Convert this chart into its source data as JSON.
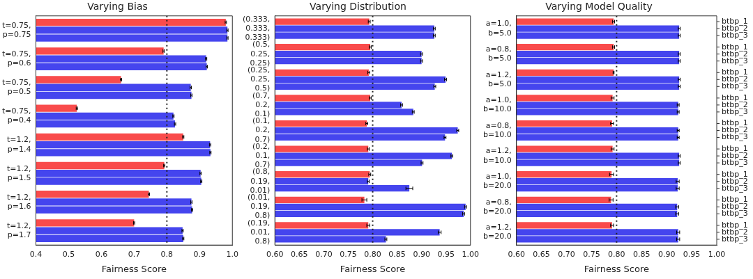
{
  "chart_data": [
    {
      "type": "bar",
      "orientation": "horizontal",
      "title": "Varying Bias",
      "xlabel": "Fairness Score",
      "legend": false,
      "grid": false,
      "categories": [
        "t=0.75,\np=0.75",
        "t=0.75,\np=0.6",
        "t=0.75,\np=0.5",
        "t=0.75,\np=0.4",
        "t=1.2,\np=1.4",
        "t=1.2,\np=1.5",
        "t=1.2,\np=1.6",
        "t=1.2,\np=1.7"
      ],
      "series": [
        {
          "color": "#f94b4b",
          "values": [
            0.98,
            0.79,
            0.66,
            0.525,
            0.85,
            0.792,
            0.745,
            0.7
          ],
          "errors": [
            0.002,
            0.002,
            0.002,
            0.002,
            0.002,
            0.002,
            0.002,
            0.002
          ]
        },
        {
          "color": "#4545ee",
          "values": [
            0.985,
            0.92,
            0.873,
            0.82,
            0.932,
            0.903,
            0.875,
            0.848
          ],
          "errors": [
            0.002,
            0.002,
            0.002,
            0.002,
            0.002,
            0.002,
            0.002,
            0.002
          ]
        },
        {
          "color": "#4545ee",
          "values": [
            0.985,
            0.922,
            0.875,
            0.825,
            0.933,
            0.905,
            0.877,
            0.85
          ],
          "errors": [
            0.002,
            0.002,
            0.002,
            0.002,
            0.002,
            0.002,
            0.002,
            0.002
          ]
        }
      ],
      "xlim": [
        0.4,
        1.0
      ],
      "xticks": [
        0.4,
        0.5,
        0.6,
        0.7,
        0.8,
        0.9,
        {
          "value": 1.0,
          "label": "1.0"
        }
      ],
      "ref_lines": [
        {
          "axis": "x",
          "value": 0.8,
          "line_style": "dotted",
          "color": "#222222"
        }
      ]
    },
    {
      "type": "bar",
      "orientation": "horizontal",
      "title": "Varying Distribution",
      "xlabel": "Fairness Score",
      "legend": false,
      "grid": false,
      "categories": [
        "(0.333,\n0.333,\n0.333)",
        "(0.5,\n0.25,\n0.25)",
        "(0.25,\n0.25,\n0.5)",
        "(0.7,\n0.2,\n0.1)",
        "(0.1,\n0.2,\n0.7)",
        "(0.2,\n0.1,\n0.7)",
        "(0.8,\n0.19,\n0.01)",
        "(0.01,\n0.19,\n0.8)",
        "(0.19,\n0.01,\n0.8)"
      ],
      "series": [
        {
          "color": "#f94b4b",
          "values": [
            0.793,
            0.795,
            0.792,
            0.795,
            0.788,
            0.791,
            0.794,
            0.783,
            0.791
          ],
          "errors": [
            0.002,
            0.002,
            0.002,
            0.002,
            0.002,
            0.002,
            0.002,
            0.005,
            0.003
          ]
        },
        {
          "color": "#4545ee",
          "values": [
            0.926,
            0.9,
            0.949,
            0.859,
            0.974,
            0.962,
            0.791,
            0.99,
            0.937
          ],
          "errors": [
            0.002,
            0.002,
            0.002,
            0.002,
            0.002,
            0.002,
            0.002,
            0.002,
            0.003
          ]
        },
        {
          "color": "#4545ee",
          "values": [
            0.926,
            0.9,
            0.927,
            0.883,
            0.948,
            0.901,
            0.875,
            0.986,
            0.827
          ],
          "errors": [
            0.002,
            0.002,
            0.002,
            0.002,
            0.002,
            0.002,
            0.007,
            0.002,
            0.002
          ]
        }
      ],
      "xlim": [
        0.6,
        1.0
      ],
      "xticks": [
        {
          "value": 0.6,
          "label": "0.60"
        },
        {
          "value": 0.65,
          "label": "0.65"
        },
        {
          "value": 0.7,
          "label": "0.70"
        },
        {
          "value": 0.75,
          "label": "0.75"
        },
        {
          "value": 0.8,
          "label": "0.80"
        },
        {
          "value": 0.85,
          "label": "0.85"
        },
        {
          "value": 0.9,
          "label": "0.90"
        },
        {
          "value": 0.95,
          "label": "0.95"
        },
        {
          "value": 1.0,
          "label": "1.00"
        }
      ],
      "ref_lines": [
        {
          "axis": "x",
          "value": 0.8,
          "line_style": "dotted",
          "color": "#222222"
        }
      ]
    },
    {
      "type": "bar",
      "orientation": "horizontal",
      "title": "Varying Model Quality",
      "xlabel": "Fairness Score",
      "legend": false,
      "grid": false,
      "categories": [
        "a=1.0,\nb=5.0",
        "a=0.8,\nb=5.0",
        "a=1.2,\nb=5.0",
        "a=1.0,\nb=10.0",
        "a=0.8,\nb=10.0",
        "a=1.2,\nb=10.0",
        "a=1.0,\nb=20.0",
        "a=0.8,\nb=20.0",
        "a=1.2,\nb=20.0"
      ],
      "series": [
        {
          "name": "btbp_1",
          "color": "#f94b4b",
          "values": [
            0.794,
            0.794,
            0.794,
            0.792,
            0.791,
            0.792,
            0.79,
            0.789,
            0.791
          ],
          "errors": [
            0.002,
            0.002,
            0.001,
            0.003,
            0.003,
            0.003,
            0.004,
            0.004,
            0.003
          ]
        },
        {
          "name": "btbp_2",
          "color": "#4545ee",
          "values": [
            0.925,
            0.925,
            0.925,
            0.923,
            0.923,
            0.925,
            0.922,
            0.921,
            0.923
          ],
          "errors": [
            0.002,
            0.002,
            0.002,
            0.002,
            0.002,
            0.002,
            0.003,
            0.003,
            0.003
          ]
        },
        {
          "name": "btbp_3",
          "color": "#4545ee",
          "values": [
            0.925,
            0.925,
            0.925,
            0.923,
            0.923,
            0.925,
            0.922,
            0.921,
            0.923
          ],
          "errors": [
            0.002,
            0.002,
            0.002,
            0.002,
            0.002,
            0.002,
            0.003,
            0.003,
            0.003
          ]
        }
      ],
      "xlim": [
        0.6,
        1.0
      ],
      "xticks": [
        {
          "value": 0.6,
          "label": "0.60"
        },
        {
          "value": 0.65,
          "label": "0.65"
        },
        {
          "value": 0.7,
          "label": "0.70"
        },
        {
          "value": 0.75,
          "label": "0.75"
        },
        {
          "value": 0.8,
          "label": "0.80"
        },
        {
          "value": 0.85,
          "label": "0.85"
        },
        {
          "value": 0.9,
          "label": "0.90"
        },
        {
          "value": 0.95,
          "label": "0.95"
        },
        {
          "value": 1.0,
          "label": "1.00"
        }
      ],
      "ref_lines": [
        {
          "axis": "x",
          "value": 0.8,
          "line_style": "dotted",
          "color": "#222222"
        }
      ]
    }
  ]
}
